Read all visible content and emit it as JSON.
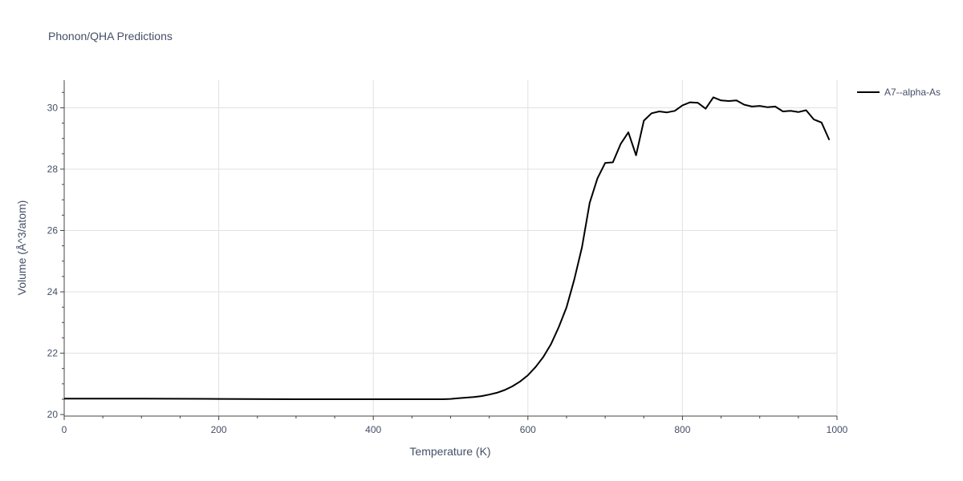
{
  "chart_data": {
    "type": "line",
    "title": "Phonon/QHA Predictions",
    "xlabel": "Temperature (K)",
    "ylabel": "Volume (Å^3/atom)",
    "xlim": [
      0,
      1000
    ],
    "ylim": [
      19.95,
      30.9
    ],
    "x_ticks": [
      0,
      200,
      400,
      600,
      800,
      1000
    ],
    "y_ticks": [
      20,
      22,
      24,
      26,
      28,
      30
    ],
    "x_tick_labels": [
      "0",
      "200",
      "400",
      "600",
      "800",
      "1000"
    ],
    "y_tick_labels": [
      "20",
      "22",
      "24",
      "26",
      "28",
      "30"
    ],
    "grid": true,
    "legend_position": "top-right",
    "series": [
      {
        "name": "A7--alpha-As",
        "color": "#000000",
        "x": [
          0,
          100,
          200,
          300,
          400,
          490,
          500,
          510,
          520,
          530,
          540,
          550,
          560,
          570,
          580,
          590,
          600,
          610,
          620,
          630,
          640,
          650,
          660,
          670,
          680,
          690,
          700,
          710,
          720,
          730,
          740,
          750,
          760,
          770,
          780,
          790,
          800,
          810,
          820,
          830,
          840,
          850,
          860,
          870,
          880,
          890,
          900,
          910,
          920,
          930,
          940,
          950,
          960,
          970,
          980,
          990
        ],
        "y": [
          20.52,
          20.52,
          20.51,
          20.5,
          20.5,
          20.5,
          20.51,
          20.53,
          20.55,
          20.57,
          20.6,
          20.65,
          20.71,
          20.8,
          20.92,
          21.08,
          21.28,
          21.55,
          21.88,
          22.3,
          22.85,
          23.5,
          24.4,
          25.45,
          26.9,
          27.7,
          28.2,
          28.22,
          28.82,
          29.2,
          28.45,
          29.58,
          29.82,
          29.88,
          29.85,
          29.9,
          30.08,
          30.18,
          30.16,
          29.97,
          30.34,
          30.24,
          30.22,
          30.24,
          30.1,
          30.04,
          30.06,
          30.02,
          30.04,
          29.88,
          29.9,
          29.86,
          29.92,
          29.62,
          29.52,
          28.95
        ]
      }
    ]
  }
}
